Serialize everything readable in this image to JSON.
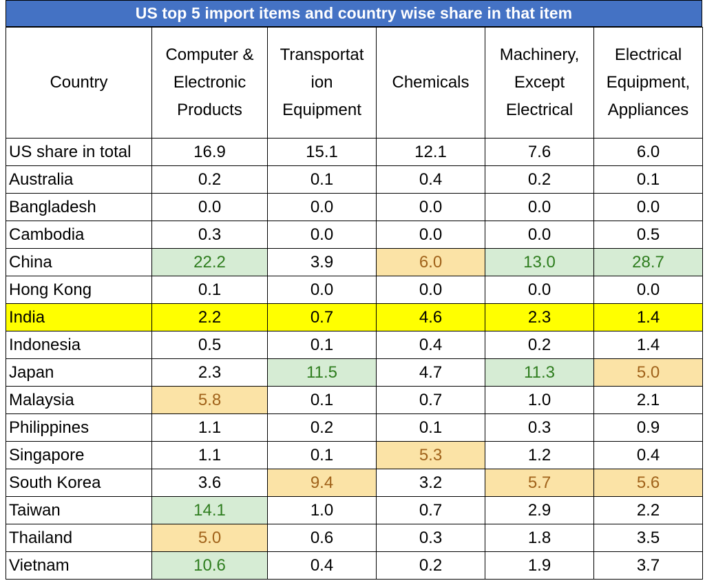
{
  "chart_data": {
    "type": "table",
    "title": "US top 5 import items and country wise share in that item",
    "columns": [
      "Country",
      "Computer & Electronic Products",
      "Transportation Equipment",
      "Chemicals",
      "Machinery, Except Electrical",
      "Electrical Equipment, Appliances"
    ],
    "header_lines": [
      [
        "Country"
      ],
      [
        "Computer &",
        "Electronic",
        "Products"
      ],
      [
        "Transportat",
        "ion",
        "Equipment"
      ],
      [
        "Chemicals"
      ],
      [
        "Machinery,",
        "Except",
        "Electrical"
      ],
      [
        "Electrical",
        "Equipment,",
        "Appliances"
      ]
    ],
    "rows": [
      {
        "country": "US share in total",
        "values": [
          "16.9",
          "15.1",
          "12.1",
          "7.6",
          "6.0"
        ],
        "highlight": [
          null,
          null,
          null,
          null,
          null
        ]
      },
      {
        "country": "Australia",
        "values": [
          "0.2",
          "0.1",
          "0.4",
          "0.2",
          "0.1"
        ],
        "highlight": [
          null,
          null,
          null,
          null,
          null
        ]
      },
      {
        "country": "Bangladesh",
        "values": [
          "0.0",
          "0.0",
          "0.0",
          "0.0",
          "0.0"
        ],
        "highlight": [
          null,
          null,
          null,
          null,
          null
        ]
      },
      {
        "country": "Cambodia",
        "values": [
          "0.3",
          "0.0",
          "0.0",
          "0.0",
          "0.5"
        ],
        "highlight": [
          null,
          null,
          null,
          null,
          null
        ]
      },
      {
        "country": "China",
        "values": [
          "22.2",
          "3.9",
          "6.0",
          "13.0",
          "28.7"
        ],
        "highlight": [
          "green",
          null,
          "orange",
          "green",
          "green"
        ]
      },
      {
        "country": "Hong Kong",
        "values": [
          "0.1",
          "0.0",
          "0.0",
          "0.0",
          "0.0"
        ],
        "highlight": [
          null,
          null,
          null,
          null,
          null
        ]
      },
      {
        "country": "India",
        "values": [
          "2.2",
          "0.7",
          "4.6",
          "2.3",
          "1.4"
        ],
        "highlight": [
          null,
          null,
          null,
          null,
          null
        ],
        "row_highlight": "yellow"
      },
      {
        "country": "Indonesia",
        "values": [
          "0.5",
          "0.1",
          "0.4",
          "0.2",
          "1.4"
        ],
        "highlight": [
          null,
          null,
          null,
          null,
          null
        ]
      },
      {
        "country": "Japan",
        "values": [
          "2.3",
          "11.5",
          "4.7",
          "11.3",
          "5.0"
        ],
        "highlight": [
          null,
          "green",
          null,
          "green",
          "orange"
        ]
      },
      {
        "country": "Malaysia",
        "values": [
          "5.8",
          "0.1",
          "0.7",
          "1.0",
          "2.1"
        ],
        "highlight": [
          "orange",
          null,
          null,
          null,
          null
        ]
      },
      {
        "country": "Philippines",
        "values": [
          "1.1",
          "0.2",
          "0.1",
          "0.3",
          "0.9"
        ],
        "highlight": [
          null,
          null,
          null,
          null,
          null
        ]
      },
      {
        "country": "Singapore",
        "values": [
          "1.1",
          "0.1",
          "5.3",
          "1.2",
          "0.4"
        ],
        "highlight": [
          null,
          null,
          "orange",
          null,
          null
        ]
      },
      {
        "country": "South Korea",
        "values": [
          "3.6",
          "9.4",
          "3.2",
          "5.7",
          "5.6"
        ],
        "highlight": [
          null,
          "orange",
          null,
          "orange",
          "orange"
        ]
      },
      {
        "country": "Taiwan",
        "values": [
          "14.1",
          "1.0",
          "0.7",
          "2.9",
          "2.2"
        ],
        "highlight": [
          "green",
          null,
          null,
          null,
          null
        ]
      },
      {
        "country": "Thailand",
        "values": [
          "5.0",
          "0.6",
          "0.3",
          "1.8",
          "3.5"
        ],
        "highlight": [
          "orange",
          null,
          null,
          null,
          null
        ]
      },
      {
        "country": "Vietnam",
        "values": [
          "10.6",
          "0.4",
          "0.2",
          "1.9",
          "3.7"
        ],
        "highlight": [
          "green",
          null,
          null,
          null,
          null
        ]
      }
    ],
    "colors": {
      "title_bg": "#4472c4",
      "title_text": "#ffffff",
      "highlight_row": "#ffff00",
      "green_fill": "#d6ecd4",
      "green_text": "#2e7d1e",
      "orange_fill": "#fbe3a6",
      "orange_text": "#a0621a"
    }
  }
}
